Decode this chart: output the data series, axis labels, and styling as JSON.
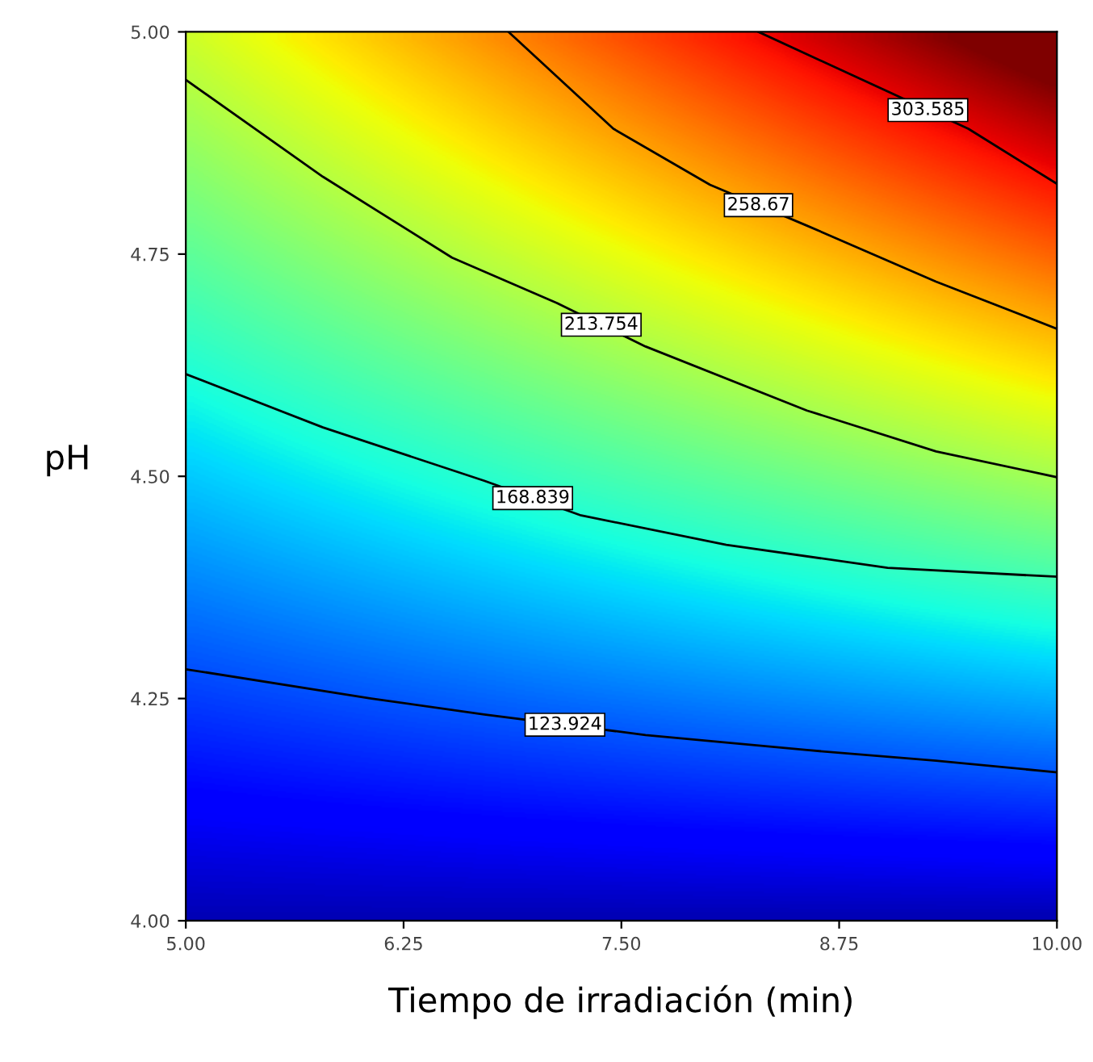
{
  "chart_data": {
    "type": "line",
    "xlabel": "Tiempo de irradiación (min)",
    "ylabel": "pH",
    "xlim": [
      5,
      10
    ],
    "ylim": [
      4,
      5
    ],
    "xticks": [
      {
        "value": 5,
        "label": "5.00"
      },
      {
        "value": 6.25,
        "label": "6.25"
      },
      {
        "value": 7.5,
        "label": "7.50"
      },
      {
        "value": 8.75,
        "label": "8.75"
      },
      {
        "value": 10,
        "label": "10.00"
      }
    ],
    "yticks": [
      {
        "value": 4,
        "label": "4.00"
      },
      {
        "value": 4.25,
        "label": "4.25"
      },
      {
        "value": 4.5,
        "label": "4.50"
      },
      {
        "value": 4.75,
        "label": "4.75"
      },
      {
        "value": 5,
        "label": "5.00"
      }
    ],
    "line_style": "solid",
    "series": [
      {
        "name": "123.924",
        "color": "#000000",
        "x": [
          5.0,
          6.065,
          6.713,
          7.639,
          8.565,
          9.306,
          10.0
        ],
        "values": [
          4.283,
          4.25,
          4.232,
          4.209,
          4.192,
          4.18,
          4.167
        ]
      },
      {
        "name": "168.839",
        "color": "#000000",
        "x": [
          5.0,
          5.787,
          6.713,
          7.269,
          8.102,
          9.028,
          10.0
        ],
        "values": [
          4.615,
          4.555,
          4.495,
          4.456,
          4.423,
          4.397,
          4.387
        ]
      },
      {
        "name": "213.754",
        "color": "#000000",
        "x": [
          5.0,
          5.787,
          6.528,
          7.13,
          7.639,
          8.565,
          9.306,
          10.0
        ],
        "values": [
          4.946,
          4.837,
          4.746,
          4.695,
          4.646,
          4.574,
          4.528,
          4.499
        ]
      },
      {
        "name": "258.67",
        "color": "#000000",
        "x": [
          6.852,
          7.454,
          8.009,
          8.565,
          9.306,
          10.0
        ],
        "values": [
          5.0,
          4.891,
          4.828,
          4.782,
          4.719,
          4.666
        ]
      },
      {
        "name": "303.585",
        "color": "#000000",
        "x": [
          8.287,
          9.028,
          9.491,
          10.0
        ],
        "values": [
          5.0,
          4.933,
          4.891,
          4.829
        ]
      }
    ]
  }
}
